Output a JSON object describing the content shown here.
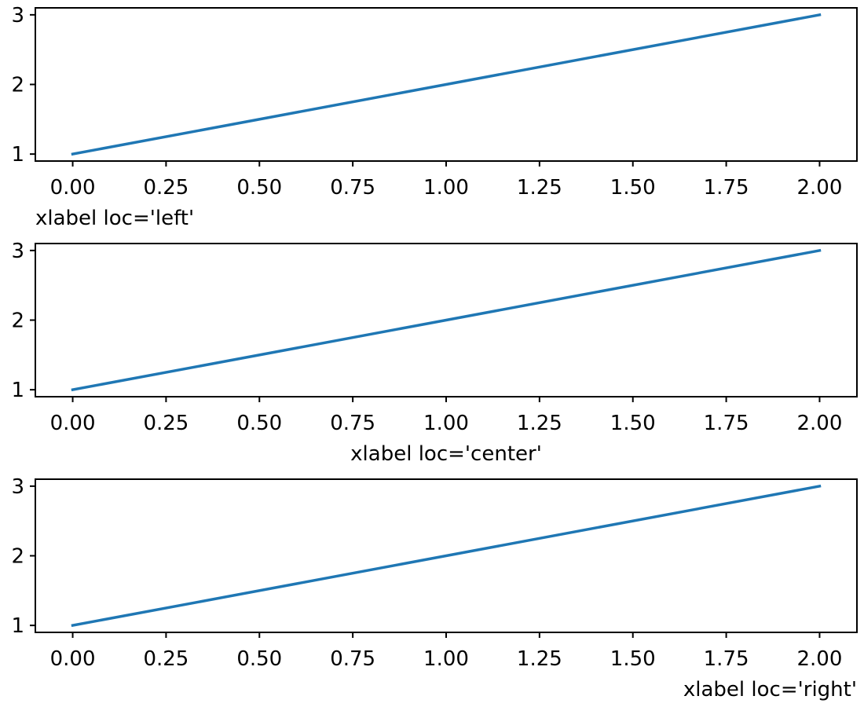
{
  "chart_data": [
    {
      "type": "line",
      "title": "",
      "xlabel": "xlabel loc='left'",
      "xlabel_loc": "left",
      "ylabel": "",
      "xlim": [
        -0.1,
        2.1
      ],
      "ylim": [
        0.9,
        3.1
      ],
      "xticks": [
        0,
        0.25,
        0.5,
        0.75,
        1,
        1.25,
        1.5,
        1.75,
        2
      ],
      "xtick_labels": [
        "0.00",
        "0.25",
        "0.50",
        "0.75",
        "1.00",
        "1.25",
        "1.50",
        "1.75",
        "2.00"
      ],
      "yticks": [
        1,
        2,
        3
      ],
      "ytick_labels": [
        "1",
        "2",
        "3"
      ],
      "grid": false,
      "series": [
        {
          "x": [
            0,
            1,
            2
          ],
          "y": [
            1,
            2,
            3
          ],
          "color": "#1f77b4"
        }
      ]
    },
    {
      "type": "line",
      "title": "",
      "xlabel": "xlabel loc='center'",
      "xlabel_loc": "center",
      "ylabel": "",
      "xlim": [
        -0.1,
        2.1
      ],
      "ylim": [
        0.9,
        3.1
      ],
      "xticks": [
        0,
        0.25,
        0.5,
        0.75,
        1,
        1.25,
        1.5,
        1.75,
        2
      ],
      "xtick_labels": [
        "0.00",
        "0.25",
        "0.50",
        "0.75",
        "1.00",
        "1.25",
        "1.50",
        "1.75",
        "2.00"
      ],
      "yticks": [
        1,
        2,
        3
      ],
      "ytick_labels": [
        "1",
        "2",
        "3"
      ],
      "grid": false,
      "series": [
        {
          "x": [
            0,
            1,
            2
          ],
          "y": [
            1,
            2,
            3
          ],
          "color": "#1f77b4"
        }
      ]
    },
    {
      "type": "line",
      "title": "",
      "xlabel": "xlabel loc='right'",
      "xlabel_loc": "right",
      "ylabel": "",
      "xlim": [
        -0.1,
        2.1
      ],
      "ylim": [
        0.9,
        3.1
      ],
      "xticks": [
        0,
        0.25,
        0.5,
        0.75,
        1,
        1.25,
        1.5,
        1.75,
        2
      ],
      "xtick_labels": [
        "0.00",
        "0.25",
        "0.50",
        "0.75",
        "1.00",
        "1.25",
        "1.50",
        "1.75",
        "2.00"
      ],
      "yticks": [
        1,
        2,
        3
      ],
      "ytick_labels": [
        "1",
        "2",
        "3"
      ],
      "grid": false,
      "series": [
        {
          "x": [
            0,
            1,
            2
          ],
          "y": [
            1,
            2,
            3
          ],
          "color": "#1f77b4"
        }
      ]
    }
  ]
}
